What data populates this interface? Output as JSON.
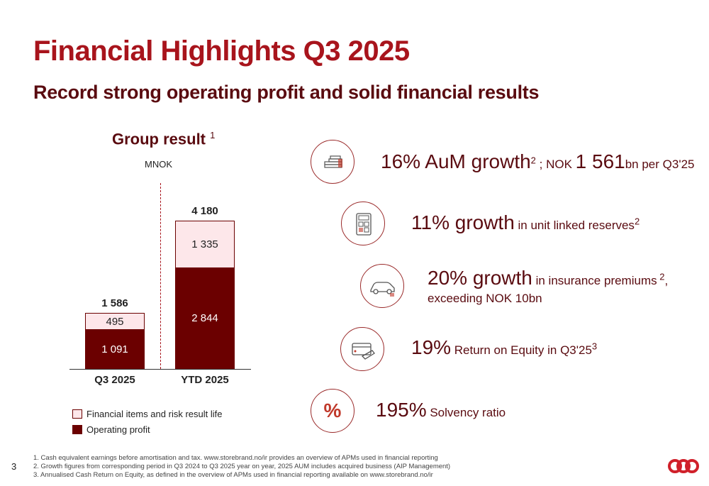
{
  "header": {
    "title": "Financial Highlights Q3 2025",
    "subtitle": "Record strong operating profit and solid financial results"
  },
  "chart": {
    "title": "Group result",
    "title_sup": "1",
    "unit": "MNOK",
    "legend": {
      "light": "Financial items and risk result life",
      "dark": "Operating profit"
    }
  },
  "chart_data": {
    "type": "bar",
    "stacked": true,
    "categories": [
      "Q3 2025",
      "YTD 2025"
    ],
    "series": [
      {
        "name": "Operating profit",
        "values": [
          1091,
          2844
        ],
        "labels": [
          "1 091",
          "2 844"
        ],
        "color": "#6b0000"
      },
      {
        "name": "Financial items and risk result life",
        "values": [
          495,
          1335
        ],
        "labels": [
          "495",
          "1 335"
        ],
        "color": "#fde7ea"
      }
    ],
    "totals": [
      1586,
      4180
    ],
    "total_labels": [
      "1 586",
      "4 180"
    ],
    "ylim": [
      0,
      4180
    ],
    "title": "Group result",
    "ylabel": "MNOK"
  },
  "kpis": [
    {
      "big": "16% AuM growth",
      "sup": "2",
      "mid": " ; NOK ",
      "big2": "1 561",
      "small": "bn per Q3'25",
      "icon": "coins-stack-icon"
    },
    {
      "big": "11% growth",
      "small": " in unit linked reserves",
      "sup": "2",
      "icon": "calculator-icon"
    },
    {
      "big": "20% growth",
      "small": " in insurance premiums",
      "sup": " 2",
      "tail": ",",
      "line2": "exceeding NOK 10bn",
      "icon": "car-icon"
    },
    {
      "big": "19%",
      "small": " Return on Equity in Q3'25",
      "sup": "3",
      "icon": "card-payment-icon"
    },
    {
      "big": "195%",
      "small": " Solvency ratio",
      "icon": "percent-icon",
      "icon_text": "%"
    }
  ],
  "footnotes": [
    "1. Cash equivalent earnings before amortisation and tax. www.storebrand.no/ir provides an overview of APMs used in financial reporting",
    "2. Growth figures from corresponding period in Q3 2024 to Q3 2025 year on year, 2025 AUM includes acquired business (AIP Management)",
    "3. Annualised Cash Return on Equity, as defined in the overview of APMs used in financial reporting available on www.storebrand.no/ir"
  ],
  "page_number": "3",
  "colors": {
    "brand_red": "#a8141c",
    "dark_red": "#6b0000",
    "light_pink": "#fde7ea"
  }
}
